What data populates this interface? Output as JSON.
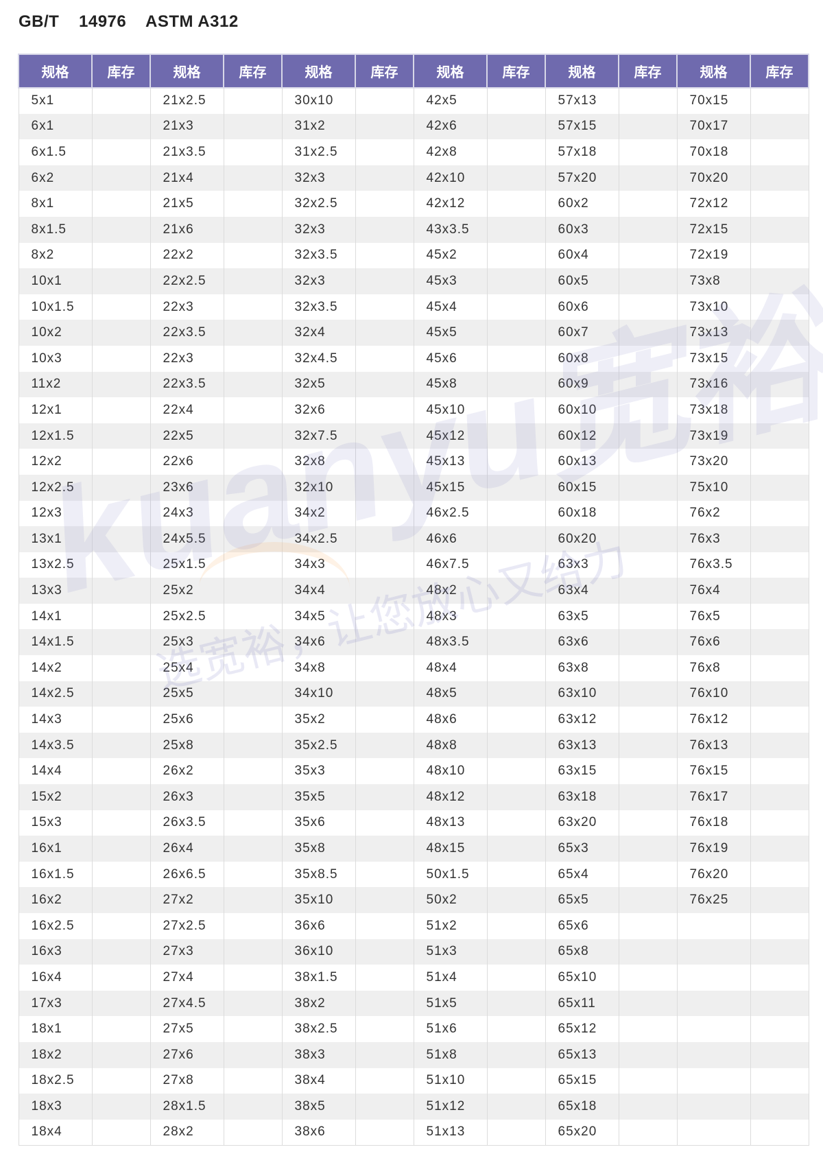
{
  "title": "GB/T    14976    ASTM A312",
  "header": {
    "spec_label": "规格",
    "stock_label": "库存"
  },
  "colors": {
    "header_bg": "#6f6aae",
    "stripe": "#efefef",
    "text": "#333333"
  },
  "watermark": {
    "logo": "kuanyu宽裕",
    "slogan": "选宽裕,让您放心又给力"
  },
  "columns": [
    [
      "5x1",
      "6x1",
      "6x1.5",
      "6x2",
      "8x1",
      "8x1.5",
      "8x2",
      "10x1",
      "10x1.5",
      "10x2",
      "10x3",
      "11x2",
      "12x1",
      "12x1.5",
      "12x2",
      "12x2.5",
      "12x3",
      "13x1",
      "13x2.5",
      "13x3",
      "14x1",
      "14x1.5",
      "14x2",
      "14x2.5",
      "14x3",
      "14x3.5",
      "14x4",
      "15x2",
      "15x3",
      "16x1",
      "16x1.5",
      "16x2",
      "16x2.5",
      "16x3",
      "16x4",
      "17x3",
      "18x1",
      "18x2",
      "18x2.5",
      "18x3",
      "18x4"
    ],
    [
      "21x2.5",
      "21x3",
      "21x3.5",
      "21x4",
      "21x5",
      "21x6",
      "22x2",
      "22x2.5",
      "22x3",
      "22x3.5",
      "22x3",
      "22x3.5",
      "22x4",
      "22x5",
      "22x6",
      "23x6",
      "24x3",
      "24x5.5",
      "25x1.5",
      "25x2",
      "25x2.5",
      "25x3",
      "25x4",
      "25x5",
      "25x6",
      "25x8",
      "26x2",
      "26x3",
      "26x3.5",
      "26x4",
      "26x6.5",
      "27x2",
      "27x2.5",
      "27x3",
      "27x4",
      "27x4.5",
      "27x5",
      "27x6",
      "27x8",
      "28x1.5",
      "28x2"
    ],
    [
      "30x10",
      "31x2",
      "31x2.5",
      "32x3",
      "32x2.5",
      "32x3",
      "32x3.5",
      "32x3",
      "32x3.5",
      "32x4",
      "32x4.5",
      "32x5",
      "32x6",
      "32x7.5",
      "32x8",
      "32x10",
      "34x2",
      "34x2.5",
      "34x3",
      "34x4",
      "34x5",
      "34x6",
      "34x8",
      "34x10",
      "35x2",
      "35x2.5",
      "35x3",
      "35x5",
      "35x6",
      "35x8",
      "35x8.5",
      "35x10",
      "36x6",
      "36x10",
      "38x1.5",
      "38x2",
      "38x2.5",
      "38x3",
      "38x4",
      "38x5",
      "38x6"
    ],
    [
      "42x5",
      "42x6",
      "42x8",
      "42x10",
      "42x12",
      "43x3.5",
      "45x2",
      "45x3",
      "45x4",
      "45x5",
      "45x6",
      "45x8",
      "45x10",
      "45x12",
      "45x13",
      "45x15",
      "46x2.5",
      "46x6",
      "46x7.5",
      "48x2",
      "48x3",
      "48x3.5",
      "48x4",
      "48x5",
      "48x6",
      "48x8",
      "48x10",
      "48x12",
      "48x13",
      "48x15",
      "50x1.5",
      "50x2",
      "51x2",
      "51x3",
      "51x4",
      "51x5",
      "51x6",
      "51x8",
      "51x10",
      "51x12",
      "51x13"
    ],
    [
      "57x13",
      "57x15",
      "57x18",
      "57x20",
      "60x2",
      "60x3",
      "60x4",
      "60x5",
      "60x6",
      "60x7",
      "60x8",
      "60x9",
      "60x10",
      "60x12",
      "60x13",
      "60x15",
      "60x18",
      "60x20",
      "63x3",
      "63x4",
      "63x5",
      "63x6",
      "63x8",
      "63x10",
      "63x12",
      "63x13",
      "63x15",
      "63x18",
      "63x20",
      "65x3",
      "65x4",
      "65x5",
      "65x6",
      "65x8",
      "65x10",
      "65x11",
      "65x12",
      "65x13",
      "65x15",
      "65x18",
      "65x20"
    ],
    [
      "70x15",
      "70x17",
      "70x18",
      "70x20",
      "72x12",
      "72x15",
      "72x19",
      "73x8",
      "73x10",
      "73x13",
      "73x15",
      "73x16",
      "73x18",
      "73x19",
      "73x20",
      "75x10",
      "76x2",
      "76x3",
      "76x3.5",
      "76x4",
      "76x5",
      "76x6",
      "76x8",
      "76x10",
      "76x12",
      "76x13",
      "76x15",
      "76x17",
      "76x18",
      "76x19",
      "76x20",
      "76x25"
    ]
  ]
}
